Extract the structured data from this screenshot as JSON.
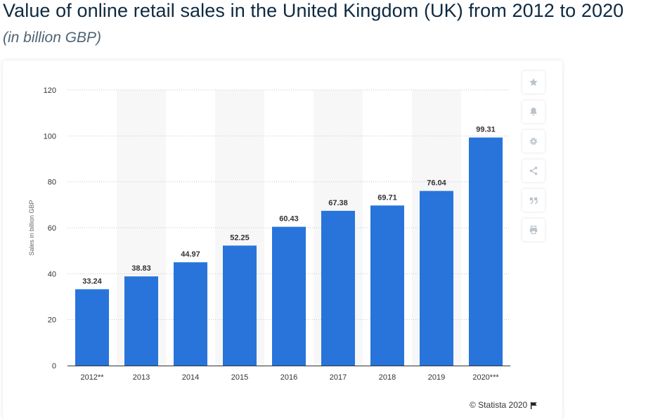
{
  "header": {
    "title": "Value of online retail sales in the United Kingdom (UK) from 2012 to 2020",
    "subtitle": "(in billion GBP)"
  },
  "toolbar": {
    "buttons": [
      {
        "name": "star-icon"
      },
      {
        "name": "bell-icon"
      },
      {
        "name": "gear-icon"
      },
      {
        "name": "share-icon"
      },
      {
        "name": "quote-icon"
      },
      {
        "name": "print-icon"
      }
    ]
  },
  "footer": {
    "credit": "© Statista 2020"
  },
  "colors": {
    "bar": "#2874db",
    "band": "#f7f7f7",
    "grid": "#c8c8c8"
  },
  "chart_data": {
    "type": "bar",
    "categories": [
      "2012**",
      "2013",
      "2014",
      "2015",
      "2016",
      "2017",
      "2018",
      "2019",
      "2020***"
    ],
    "values": [
      33.24,
      38.83,
      44.97,
      52.25,
      60.43,
      67.38,
      69.71,
      76.04,
      99.31
    ],
    "data_labels": [
      "33.24",
      "38.83",
      "44.97",
      "52.25",
      "60.43",
      "67.38",
      "69.71",
      "76.04",
      "99.31"
    ],
    "ylabel": "Sales in billion GBP",
    "ylim": [
      0,
      120
    ],
    "yticks": [
      0,
      20,
      40,
      60,
      80,
      100,
      120
    ],
    "grid": true,
    "legend": "none"
  }
}
